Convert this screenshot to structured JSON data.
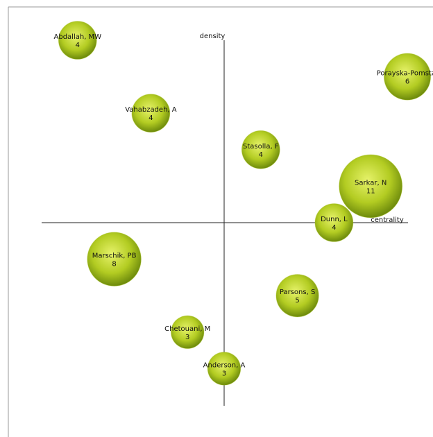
{
  "chart_data": {
    "type": "bubble",
    "xlabel": "centrality",
    "ylabel": "density",
    "xlim": [
      -1,
      1
    ],
    "ylim": [
      -1,
      1
    ],
    "color": "#a8c41c",
    "labels": [
      "Abdallah, MW",
      "Porayska-Pomsta,",
      "Vahabzadeh, A",
      "Stasolla, F",
      "Sarkar, N",
      "Dunn, L",
      "Marschik, PB",
      "Parsons, S",
      "Chetouani, M",
      "Anderson, A"
    ],
    "x": [
      -0.8,
      1.0,
      -0.4,
      0.2,
      0.8,
      0.6,
      -0.6,
      0.4,
      -0.2,
      0.0
    ],
    "values": [
      1.0,
      0.8,
      0.6,
      0.4,
      0.2,
      0.0,
      -0.2,
      -0.4,
      -0.6,
      -0.8
    ],
    "sizes": [
      4,
      6,
      4,
      4,
      11,
      4,
      8,
      5,
      3,
      3
    ]
  }
}
